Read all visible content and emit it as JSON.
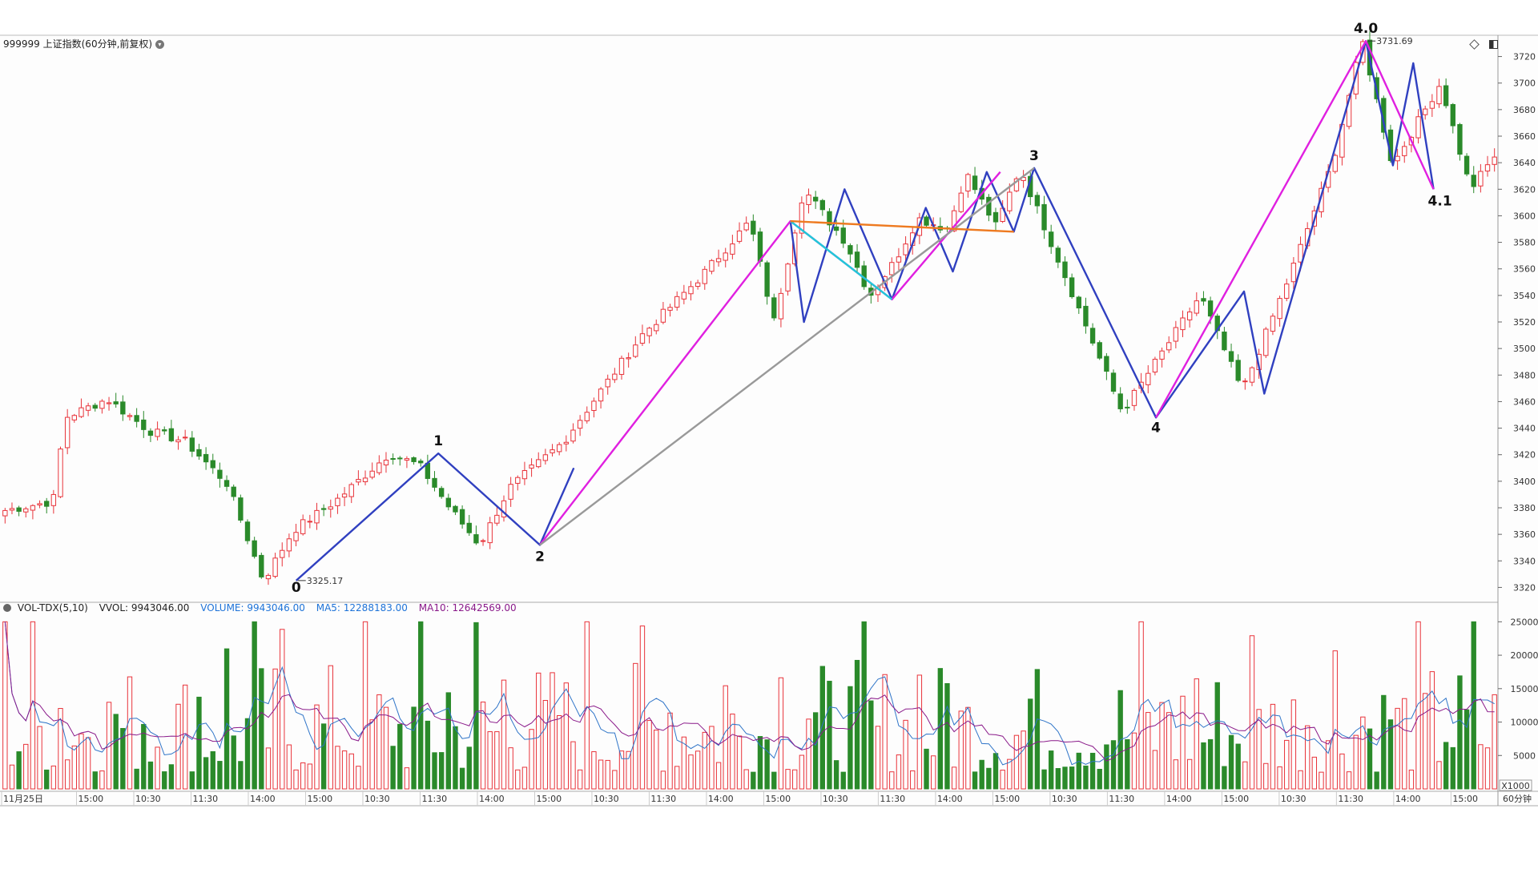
{
  "header": {
    "symbol_title": "999999 上证指数(60分钟,前复权)",
    "dropdown_icon": "chevron-down-icon",
    "tool_icons": [
      "diamond-icon",
      "panel-toggle-icon"
    ]
  },
  "colors": {
    "up": "#e8333a",
    "down": "#2a8a2a",
    "wave_blue": "#3040c0",
    "wave_magenta": "#e020e0",
    "wave_gray": "#999999",
    "wave_cyan": "#20c8d8",
    "wave_orange": "#ee7a20",
    "vol_ma5": "#2e74c8",
    "vol_ma10": "#8a1a8a",
    "grid": "#dddddd"
  },
  "price_axis": {
    "ticks": [
      "3720",
      "3700",
      "3680",
      "3660",
      "3640",
      "3620",
      "3600",
      "3580",
      "3560",
      "3540",
      "3520",
      "3500",
      "3480",
      "3460",
      "3440",
      "3420",
      "3400",
      "3380",
      "3360",
      "3340",
      "3320"
    ]
  },
  "price_markers": {
    "high_label": "3731.69",
    "low_label": "3325.17"
  },
  "wave_labels": [
    "0",
    "1",
    "2",
    "3",
    "4",
    "4.0",
    "4.1"
  ],
  "volume_panel": {
    "indicator": "VOL-TDX(5,10)",
    "vvol": "VVOL: 9943046.00",
    "volume": "VOLUME: 9943046.00",
    "ma5": "MA5: 12288183.00",
    "ma10": "MA10: 12642569.00",
    "ticks": [
      "25000",
      "20000",
      "15000",
      "10000",
      "5000"
    ],
    "unit": "X1000"
  },
  "time_axis": {
    "labels": [
      "11月25日",
      "15:00",
      "10:30",
      "11:30",
      "14:00",
      "15:00",
      "10:30",
      "11:30",
      "14:00",
      "15:00",
      "10:30",
      "11:30",
      "14:00",
      "15:00",
      "10:30",
      "11:30",
      "14:00",
      "15:00",
      "10:30",
      "11:30",
      "14:00",
      "15:00",
      "10:30",
      "11:30",
      "14:00",
      "15:00"
    ],
    "period": "60分钟"
  },
  "chart_data": {
    "type": "candlestick",
    "count": 216,
    "anchors": [
      [
        0,
        3378
      ],
      [
        8,
        3385
      ],
      [
        10,
        3448
      ],
      [
        17,
        3462
      ],
      [
        24,
        3438
      ],
      [
        30,
        3430
      ],
      [
        37,
        3398
      ],
      [
        43,
        3325.17
      ],
      [
        48,
        3363
      ],
      [
        55,
        3385
      ],
      [
        64,
        3421
      ],
      [
        69,
        3412
      ],
      [
        74,
        3380
      ],
      [
        79,
        3352
      ],
      [
        84,
        3395
      ],
      [
        93,
        3430
      ],
      [
        106,
        3510
      ],
      [
        116,
        3555
      ],
      [
        124,
        3596
      ],
      [
        128,
        3520
      ],
      [
        133,
        3620
      ],
      [
        140,
        3580
      ],
      [
        144,
        3540
      ],
      [
        148,
        3565
      ],
      [
        152,
        3598
      ],
      [
        157,
        3590
      ],
      [
        160,
        3632
      ],
      [
        165,
        3592
      ],
      [
        169,
        3636
      ],
      [
        176,
        3560
      ],
      [
        186,
        3452
      ],
      [
        199,
        3540
      ],
      [
        206,
        3468
      ],
      [
        214,
        3556
      ],
      [
        221,
        3640
      ],
      [
        226,
        3731.69
      ],
      [
        231,
        3638
      ],
      [
        239,
        3700
      ],
      [
        244,
        3620
      ],
      [
        248,
        3645
      ]
    ],
    "anchor_bar_span": 248,
    "volume_range": [
      2500,
      25000
    ],
    "waves": [
      {
        "color": "wave_blue",
        "points": [
          [
            43,
            3325.17
          ],
          [
            64,
            3421
          ],
          [
            79,
            3352
          ],
          [
            84,
            3410
          ]
        ]
      },
      {
        "color": "wave_blue",
        "points": [
          [
            116,
            3596
          ],
          [
            118,
            3520
          ],
          [
            124,
            3620
          ],
          [
            131,
            3537
          ],
          [
            136,
            3606
          ],
          [
            140,
            3558
          ],
          [
            145,
            3633
          ],
          [
            149,
            3588
          ],
          [
            152,
            3636
          ],
          [
            170,
            3448
          ],
          [
            183,
            3543
          ],
          [
            186,
            3466
          ],
          [
            201,
            3731.69
          ],
          [
            205,
            3638
          ],
          [
            208,
            3715
          ],
          [
            211,
            3620
          ]
        ]
      },
      {
        "color": "wave_magenta",
        "points": [
          [
            79,
            3352
          ],
          [
            116,
            3596
          ],
          [
            131,
            3537
          ],
          [
            147,
            3633
          ]
        ]
      },
      {
        "color": "wave_magenta",
        "points": [
          [
            170,
            3448
          ],
          [
            201,
            3731.69
          ],
          [
            211,
            3620
          ]
        ]
      },
      {
        "color": "wave_gray",
        "points": [
          [
            79,
            3352
          ],
          [
            152,
            3636
          ]
        ]
      },
      {
        "color": "wave_cyan",
        "points": [
          [
            116,
            3596
          ],
          [
            131,
            3537
          ]
        ]
      },
      {
        "color": "wave_orange",
        "points": [
          [
            116,
            3596
          ],
          [
            149,
            3588
          ]
        ]
      }
    ]
  }
}
